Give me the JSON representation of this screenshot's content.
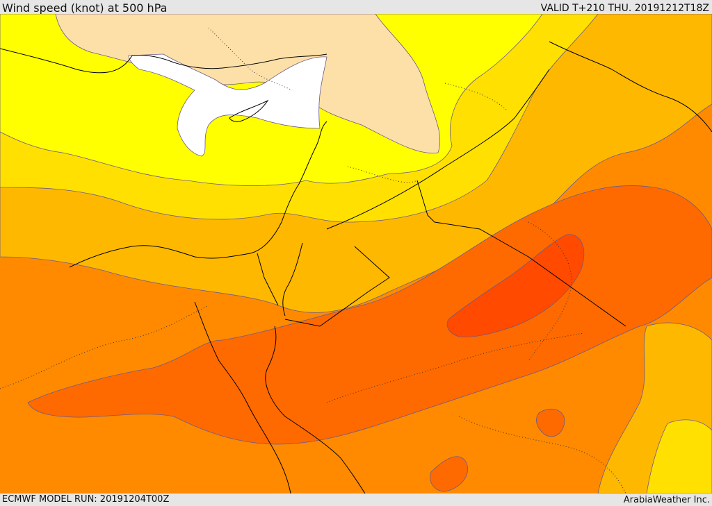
{
  "header": {
    "title": "Wind speed (knot) at 500 hPa",
    "valid": "VALID T+210 THU. 20191212T18Z"
  },
  "footer": {
    "model_run": "ECMWF MODEL RUN: 20191204T00Z",
    "credit": "ArabiaWeather Inc."
  },
  "map": {
    "colors": {
      "calm": "#ffffff",
      "light": "#fde0a8",
      "yellow": "#ffff00",
      "gold": "#ffe000",
      "amber": "#ffb800",
      "orange": "#ff8a00",
      "dark_orange": "#ff6a00",
      "red_orange": "#ff4a00",
      "contour": "#6b5a8a",
      "border": "#000000"
    }
  }
}
